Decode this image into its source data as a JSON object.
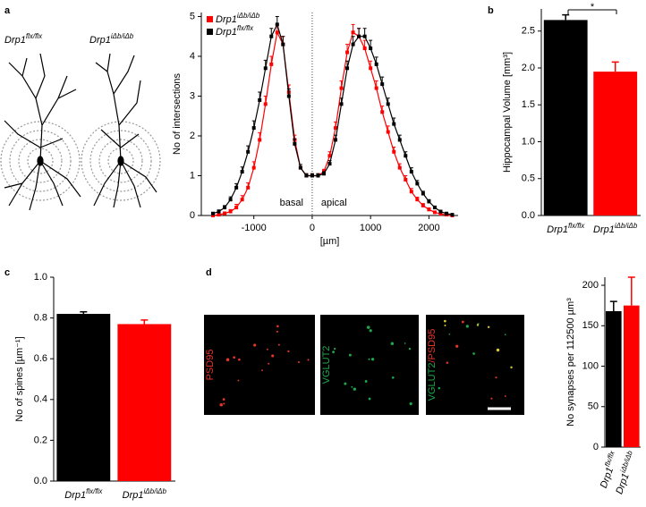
{
  "figure": {
    "panel_labels": [
      "a",
      "b",
      "c",
      "d"
    ],
    "neuron_labels": [
      {
        "base": "Drp1",
        "sup": "flx/flx"
      },
      {
        "base": "Drp1",
        "sup": "iΔb/iΔb"
      }
    ],
    "images": [
      {
        "label_parts": [
          "PSD95"
        ],
        "colors": [
          "#e8352a"
        ]
      },
      {
        "label_parts": [
          "VGLUT2"
        ],
        "colors": [
          "#1fa64a"
        ]
      },
      {
        "label_parts": [
          "VGLUT2",
          "/PSD95"
        ],
        "colors": [
          "#1fa64a",
          "#e8352a"
        ]
      }
    ]
  },
  "chart_data": [
    {
      "type": "line",
      "ylabel": "No of intersections",
      "xlabel": "[µm]",
      "annotations": [
        "basal",
        "apical"
      ],
      "reference_line_x": 0,
      "x": [
        -1700,
        -1600,
        -1500,
        -1400,
        -1300,
        -1200,
        -1100,
        -1000,
        -900,
        -800,
        -700,
        -600,
        -500,
        -400,
        -300,
        -200,
        -100,
        0,
        100,
        200,
        300,
        400,
        500,
        600,
        700,
        800,
        900,
        1000,
        1100,
        1200,
        1300,
        1400,
        1500,
        1600,
        1700,
        1800,
        1900,
        2000,
        2100,
        2200,
        2300,
        2400
      ],
      "series": [
        {
          "name": "Drp1",
          "name_sup": "iΔb/iΔb",
          "color": "#ff0000",
          "values": [
            0,
            0.02,
            0.05,
            0.1,
            0.2,
            0.4,
            0.7,
            1.2,
            1.9,
            2.8,
            3.8,
            4.6,
            4.3,
            3.1,
            1.9,
            1.2,
            1.0,
            1.0,
            1.0,
            1.1,
            1.5,
            2.2,
            3.2,
            4.1,
            4.6,
            4.5,
            4.2,
            3.7,
            3.2,
            2.6,
            2.1,
            1.6,
            1.2,
            0.9,
            0.6,
            0.4,
            0.25,
            0.15,
            0.08,
            0.04,
            0.02,
            0
          ],
          "errors": [
            0.02,
            0.03,
            0.04,
            0.05,
            0.08,
            0.1,
            0.12,
            0.15,
            0.18,
            0.2,
            0.2,
            0.2,
            0.2,
            0.18,
            0.12,
            0.08,
            0.05,
            0.05,
            0.05,
            0.06,
            0.1,
            0.15,
            0.18,
            0.2,
            0.2,
            0.2,
            0.2,
            0.18,
            0.18,
            0.15,
            0.15,
            0.12,
            0.1,
            0.1,
            0.08,
            0.06,
            0.05,
            0.04,
            0.03,
            0.02,
            0.02,
            0.02
          ]
        },
        {
          "name": "Drp1",
          "name_sup": "flx/flx",
          "color": "#000000",
          "values": [
            0.05,
            0.1,
            0.2,
            0.4,
            0.7,
            1.1,
            1.6,
            2.2,
            2.9,
            3.7,
            4.5,
            4.8,
            4.3,
            3.0,
            1.8,
            1.2,
            1.0,
            1.0,
            1.0,
            1.05,
            1.3,
            1.9,
            2.8,
            3.7,
            4.3,
            4.5,
            4.5,
            4.2,
            3.8,
            3.3,
            2.8,
            2.3,
            1.9,
            1.5,
            1.1,
            0.8,
            0.55,
            0.35,
            0.2,
            0.1,
            0.05,
            0.02
          ],
          "errors": [
            0.03,
            0.04,
            0.05,
            0.07,
            0.1,
            0.12,
            0.15,
            0.18,
            0.2,
            0.2,
            0.2,
            0.2,
            0.2,
            0.18,
            0.12,
            0.08,
            0.05,
            0.05,
            0.05,
            0.05,
            0.08,
            0.12,
            0.15,
            0.18,
            0.2,
            0.2,
            0.2,
            0.2,
            0.18,
            0.18,
            0.15,
            0.15,
            0.12,
            0.1,
            0.1,
            0.08,
            0.06,
            0.05,
            0.04,
            0.03,
            0.02,
            0.02
          ]
        }
      ],
      "xlim": [
        -1900,
        2500
      ],
      "xticks": [
        -1000,
        0,
        1000,
        2000
      ],
      "ylim": [
        0,
        5.1
      ],
      "yticks": [
        0,
        1,
        2,
        3,
        4,
        5
      ]
    },
    {
      "type": "bar",
      "ylabel": "Hippocampal Volume [mm³]",
      "significance": "*",
      "categories": [
        "Drp1",
        "Drp1"
      ],
      "category_sups": [
        "flx/flx",
        "iΔb/iΔb"
      ],
      "values": [
        2.65,
        1.95
      ],
      "errors": [
        0.07,
        0.13
      ],
      "colors": [
        "#000000",
        "#ff0000"
      ],
      "ylim": [
        0,
        2.8
      ],
      "yticks": [
        {
          "value": 0,
          "label": "0.0"
        },
        0.5,
        {
          "value": 1,
          "label": "1.0"
        },
        1.5,
        {
          "value": 2,
          "label": "2.0"
        },
        2.5
      ]
    },
    {
      "type": "bar",
      "ylabel": "No of spines [µm⁻¹]",
      "categories": [
        "Drp1",
        "Drp1"
      ],
      "category_sups": [
        "flx/flx",
        "iΔb/iΔb"
      ],
      "values": [
        0.82,
        0.77
      ],
      "errors": [
        0.01,
        0.02
      ],
      "colors": [
        "#000000",
        "#ff0000"
      ],
      "ylim": [
        0,
        1
      ],
      "yticks": [
        {
          "value": 0,
          "label": "0.0"
        },
        0.2,
        0.4,
        0.6,
        0.8,
        {
          "value": 1,
          "label": "1.0"
        }
      ]
    },
    {
      "type": "bar",
      "ylabel": "No synapses per 112500 µm³",
      "categories": [
        "Drp1",
        "Drp1"
      ],
      "category_sups": [
        "flx/flx",
        "iΔb/iΔb"
      ],
      "values": [
        168,
        175
      ],
      "errors": [
        12,
        35
      ],
      "colors": [
        "#000000",
        "#ff0000"
      ],
      "ylim": [
        0,
        210
      ],
      "yticks": [
        0,
        50,
        100,
        150,
        200
      ]
    }
  ]
}
